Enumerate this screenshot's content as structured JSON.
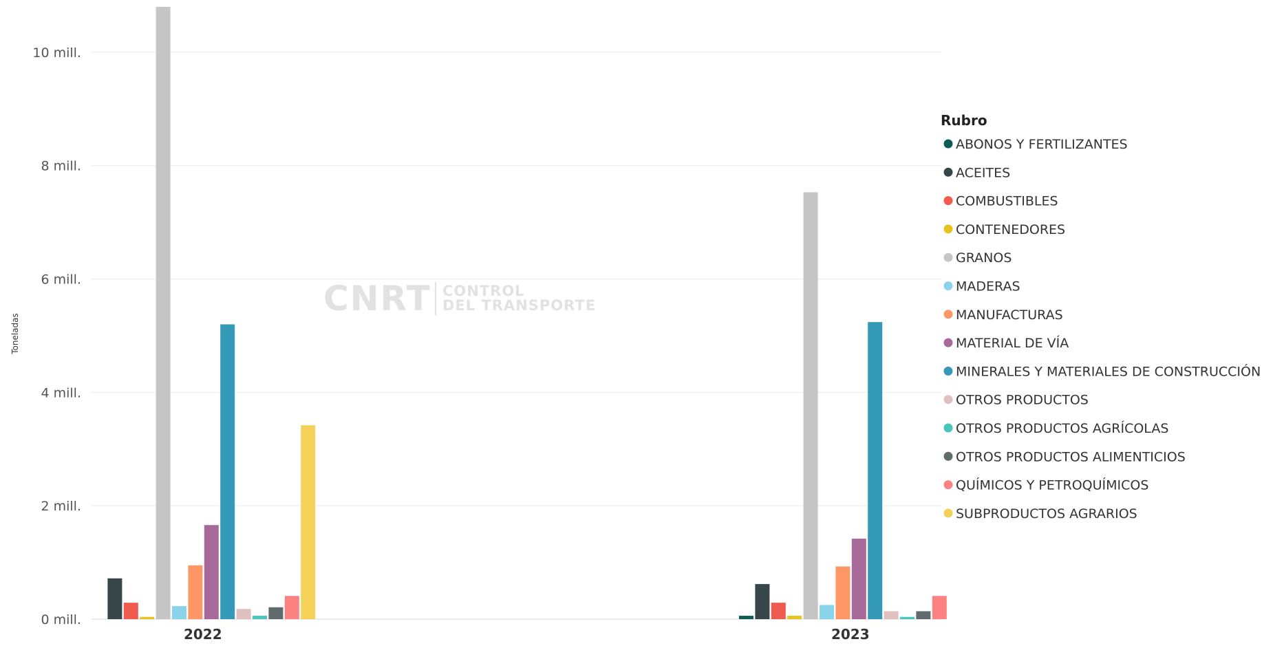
{
  "chart_data": {
    "type": "bar",
    "ylabel": "Toneladas",
    "ylim": [
      0,
      10800000
    ],
    "yticks": [
      {
        "value": 0,
        "label": "0 mill."
      },
      {
        "value": 2000000,
        "label": "2 mill."
      },
      {
        "value": 4000000,
        "label": "4 mill."
      },
      {
        "value": 6000000,
        "label": "6 mill."
      },
      {
        "value": 8000000,
        "label": "8 mill."
      },
      {
        "value": 10000000,
        "label": "10 mill."
      }
    ],
    "grid": true,
    "categories": [
      "2022",
      "2023"
    ],
    "legend_title": "Rubro",
    "legend_position": "right",
    "series": [
      {
        "name": "ABONOS Y FERTILIZANTES",
        "color": "#0f5b55",
        "values": [
          0,
          60000
        ]
      },
      {
        "name": "ACEITES",
        "color": "#374649",
        "values": [
          720000,
          620000
        ]
      },
      {
        "name": "COMBUSTIBLES",
        "color": "#f05a4f",
        "values": [
          290000,
          290000
        ]
      },
      {
        "name": "CONTENEDORES",
        "color": "#e8c21e",
        "values": [
          40000,
          60000
        ]
      },
      {
        "name": "GRANOS",
        "color": "#c5c5c5",
        "values": [
          10800000,
          7530000
        ]
      },
      {
        "name": "MADERAS",
        "color": "#8ad4eb",
        "values": [
          230000,
          250000
        ]
      },
      {
        "name": "MANUFACTURAS",
        "color": "#fe9666",
        "values": [
          950000,
          930000
        ]
      },
      {
        "name": "MATERIAL DE VÍA",
        "color": "#a66999",
        "values": [
          1660000,
          1420000
        ]
      },
      {
        "name": "MINERALES Y MATERIALES DE CONSTRUCCIÓN",
        "color": "#3599b8",
        "values": [
          5200000,
          5240000
        ]
      },
      {
        "name": "OTROS PRODUCTOS",
        "color": "#dfbfbf",
        "values": [
          180000,
          140000
        ]
      },
      {
        "name": "OTROS PRODUCTOS AGRÍCOLAS",
        "color": "#4ac5bb",
        "values": [
          60000,
          40000
        ]
      },
      {
        "name": "OTROS PRODUCTOS ALIMENTICIOS",
        "color": "#5f6b6d",
        "values": [
          210000,
          140000
        ]
      },
      {
        "name": "QUÍMICOS Y PETROQUÍMICOS",
        "color": "#fb8281",
        "values": [
          410000,
          410000
        ]
      },
      {
        "name": "SUBPRODUCTOS AGRARIOS",
        "color": "#f4d25a",
        "values": [
          3420000,
          0
        ]
      }
    ]
  },
  "watermark": {
    "main": "CNRT",
    "line1": "CONTROL",
    "line2": "DEL TRANSPORTE"
  }
}
